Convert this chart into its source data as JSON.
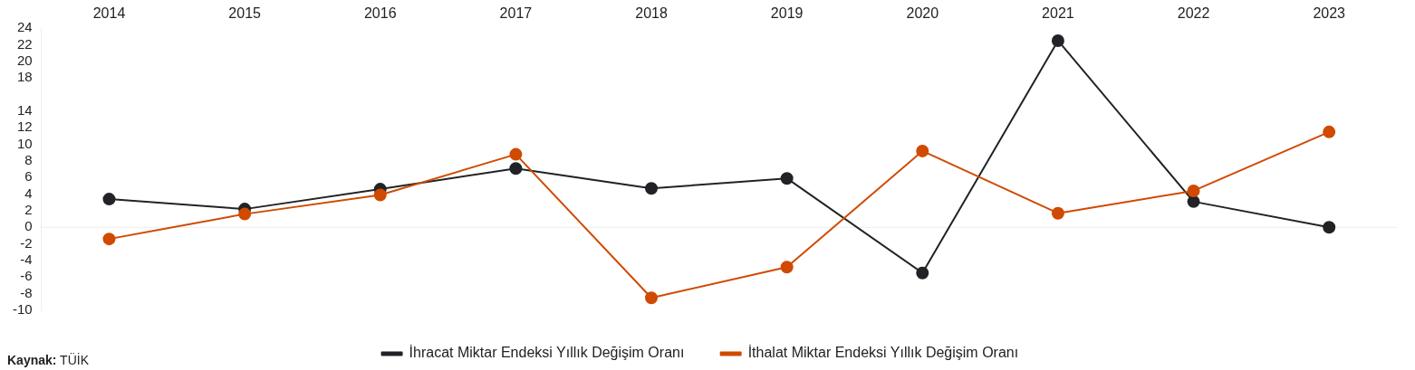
{
  "chart_data": {
    "type": "line",
    "categories": [
      "2014",
      "2015",
      "2016",
      "2017",
      "2018",
      "2019",
      "2020",
      "2021",
      "2022",
      "2023"
    ],
    "series": [
      {
        "name": "İhracat Miktar Endeksi Yıllık Değişim Oranı",
        "color": "#222326",
        "values": [
          3.4,
          2.2,
          4.6,
          7.1,
          4.7,
          5.9,
          -5.5,
          22.5,
          3.1,
          0
        ]
      },
      {
        "name": "İthalat Miktar Endeksi Yıllık Değişim Oranı",
        "color": "#d04a02",
        "values": [
          -1.4,
          1.6,
          3.9,
          8.8,
          -8.5,
          -4.8,
          9.2,
          1.7,
          4.4,
          11.5
        ]
      }
    ],
    "ylim": [
      -10,
      24
    ],
    "yticks": [
      -10,
      -8,
      -6,
      -4,
      -2,
      0,
      2,
      4,
      6,
      8,
      10,
      12,
      14,
      18,
      20,
      22,
      24
    ],
    "ref_lines": [
      {
        "axis": "y",
        "value": 0,
        "color": "#eeeeee"
      }
    ],
    "grid": false,
    "legend": "bottom",
    "marker": "circle",
    "line_style": "solid",
    "annotations": [
      "Kaynak: TÜİK"
    ]
  }
}
